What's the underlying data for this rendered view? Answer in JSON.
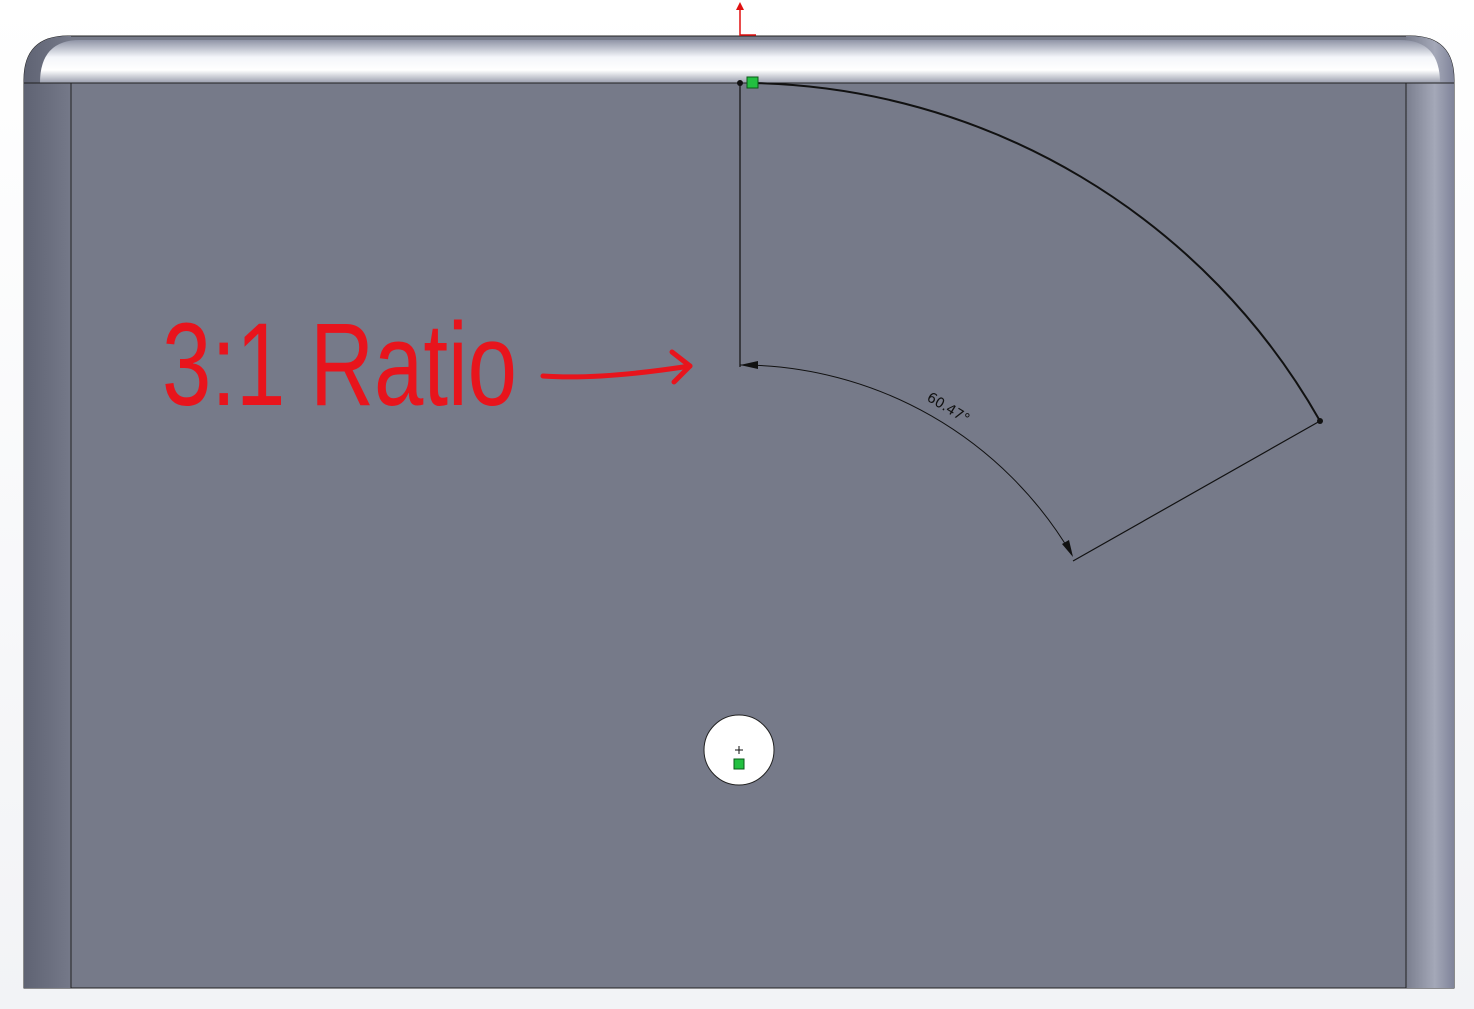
{
  "annotation": "3:1 Ratio",
  "dimension": "60.47°"
}
